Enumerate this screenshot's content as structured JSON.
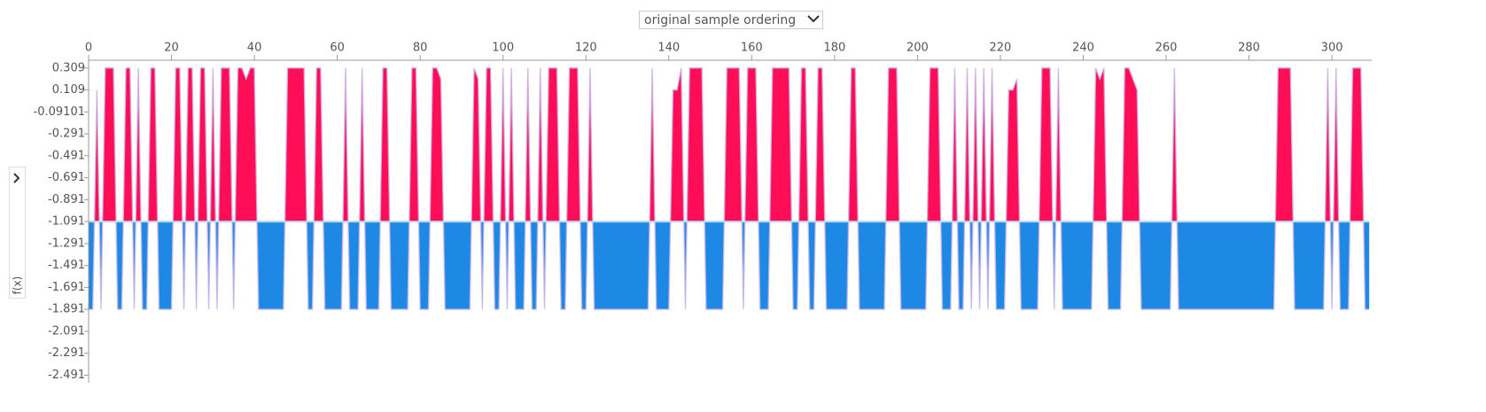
{
  "chart_data": {
    "type": "force",
    "ordering_label": "original sample ordering",
    "y_label": "f(x)",
    "base_value": -1.091,
    "xlim": [
      0,
      309.6
    ],
    "ylim": [
      -2.56,
      0.38
    ],
    "xticks": [
      0,
      20,
      40,
      60,
      80,
      100,
      120,
      140,
      160,
      180,
      200,
      220,
      240,
      260,
      280,
      300
    ],
    "yticks": [
      0.309,
      0.109,
      -0.09101,
      -0.291,
      -0.491,
      -0.691,
      -0.891,
      -1.091,
      -1.291,
      -1.491,
      -1.691,
      -1.891,
      -2.091,
      -2.291,
      -2.491
    ],
    "positive_color": "#ff0d57",
    "negative_color": "#1e88e5",
    "values": [
      -1.891,
      -1.891,
      0.109,
      -1.891,
      0.309,
      0.309,
      0.309,
      -1.891,
      -1.891,
      0.309,
      0.309,
      -1.891,
      0.309,
      -1.891,
      -1.891,
      0.309,
      0.309,
      -1.891,
      -1.891,
      -1.891,
      -1.891,
      0.309,
      0.309,
      -1.891,
      0.309,
      0.309,
      -1.891,
      0.309,
      0.309,
      -1.891,
      0.309,
      -1.891,
      0.309,
      0.309,
      0.309,
      -1.891,
      0.309,
      0.309,
      0.209,
      0.309,
      0.309,
      -1.891,
      -1.891,
      -1.891,
      -1.891,
      -1.891,
      -1.891,
      -1.891,
      0.309,
      0.309,
      0.309,
      0.309,
      0.309,
      -1.891,
      -1.891,
      0.309,
      0.309,
      -1.891,
      -1.891,
      -1.891,
      -1.891,
      -1.891,
      0.309,
      -1.891,
      -1.891,
      -1.891,
      0.309,
      -1.891,
      -1.891,
      -1.891,
      -1.891,
      0.309,
      0.309,
      -1.891,
      -1.891,
      -1.891,
      -1.891,
      -1.891,
      0.309,
      0.309,
      -1.891,
      -1.891,
      -1.891,
      0.309,
      0.309,
      0.209,
      -1.891,
      -1.891,
      -1.891,
      -1.891,
      -1.891,
      -1.891,
      -1.891,
      0.309,
      0.209,
      -1.891,
      0.309,
      0.309,
      -1.891,
      -1.891,
      0.309,
      -1.891,
      0.309,
      -1.891,
      -1.891,
      -1.891,
      0.309,
      -1.891,
      -1.891,
      0.309,
      -1.891,
      0.309,
      0.309,
      0.309,
      -1.891,
      -1.891,
      0.309,
      0.309,
      0.309,
      -1.891,
      -1.891,
      0.309,
      -1.891,
      -1.891,
      -1.891,
      -1.891,
      -1.891,
      -1.891,
      -1.891,
      -1.891,
      -1.891,
      -1.891,
      -1.891,
      -1.891,
      -1.891,
      -1.891,
      0.309,
      -1.891,
      -1.891,
      -1.891,
      -1.891,
      0.109,
      0.109,
      0.309,
      -1.891,
      0.309,
      0.309,
      0.309,
      0.309,
      -1.891,
      -1.891,
      -1.891,
      -1.891,
      -1.891,
      0.309,
      0.309,
      0.309,
      0.309,
      -1.891,
      0.309,
      0.309,
      0.309,
      -1.891,
      -1.891,
      -1.891,
      0.309,
      0.309,
      0.309,
      0.309,
      0.309,
      -1.891,
      -1.891,
      0.309,
      0.309,
      -1.891,
      -1.891,
      0.309,
      0.309,
      -1.891,
      -1.891,
      -1.891,
      -1.891,
      -1.891,
      -1.891,
      0.309,
      0.309,
      -1.891,
      -1.891,
      -1.891,
      -1.891,
      -1.891,
      -1.891,
      -1.891,
      0.309,
      0.309,
      0.309,
      -1.891,
      -1.891,
      -1.891,
      -1.891,
      -1.891,
      -1.891,
      -1.891,
      0.309,
      0.309,
      0.309,
      -1.891,
      -1.891,
      -1.891,
      0.309,
      -1.891,
      -1.891,
      0.309,
      -1.891,
      0.309,
      -1.891,
      0.309,
      -1.891,
      0.309,
      -1.891,
      -1.891,
      -1.891,
      0.109,
      0.109,
      0.209,
      -1.891,
      -1.891,
      -1.891,
      -1.891,
      -1.891,
      0.309,
      0.309,
      0.309,
      -1.891,
      0.309,
      -1.891,
      -1.891,
      -1.891,
      -1.891,
      -1.891,
      -1.891,
      -1.891,
      -1.891,
      0.309,
      0.209,
      0.309,
      -1.891,
      -1.891,
      -1.891,
      -1.891,
      0.309,
      0.309,
      0.209,
      0.109,
      -1.891,
      -1.891,
      -1.891,
      -1.891,
      -1.891,
      -1.891,
      -1.891,
      -1.891,
      0.309,
      -1.891,
      -1.891,
      -1.891,
      -1.891,
      -1.891,
      -1.891,
      -1.891,
      -1.891,
      -1.891,
      -1.891,
      -1.891,
      -1.891,
      -1.891,
      -1.891,
      -1.891,
      -1.891,
      -1.891,
      -1.891,
      -1.891,
      -1.891,
      -1.891,
      -1.891,
      -1.891,
      -1.891,
      0.309,
      0.309,
      0.309,
      0.309,
      -1.891,
      -1.891,
      -1.891,
      -1.891,
      -1.891,
      -1.891,
      -1.891,
      -1.891,
      0.309,
      -1.891,
      0.309,
      -1.891,
      -1.891,
      -1.891,
      0.309,
      0.309,
      0.309,
      -1.891,
      -1.891
    ]
  }
}
